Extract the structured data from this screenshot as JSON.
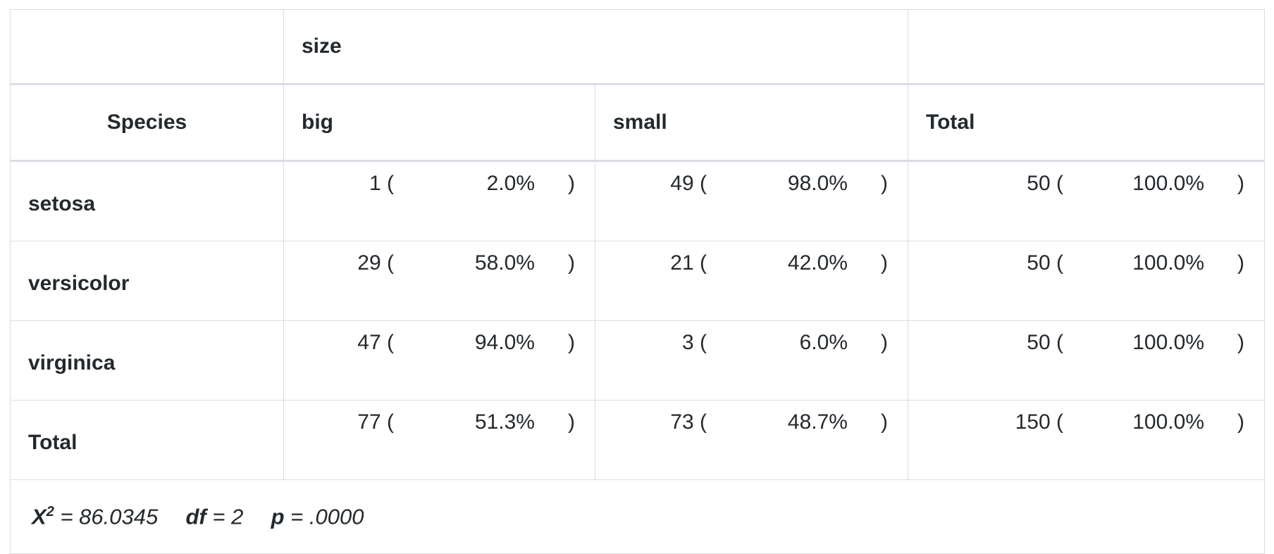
{
  "header": {
    "group_label": "size",
    "species_label": "Species",
    "columns": [
      "big",
      "small",
      "Total"
    ]
  },
  "rows": [
    {
      "label": "setosa",
      "cells": [
        {
          "count": "1",
          "pct": "2.0%"
        },
        {
          "count": "49",
          "pct": "98.0%"
        },
        {
          "count": "50",
          "pct": "100.0%"
        }
      ]
    },
    {
      "label": "versicolor",
      "cells": [
        {
          "count": "29",
          "pct": "58.0%"
        },
        {
          "count": "21",
          "pct": "42.0%"
        },
        {
          "count": "50",
          "pct": "100.0%"
        }
      ]
    },
    {
      "label": "virginica",
      "cells": [
        {
          "count": "47",
          "pct": "94.0%"
        },
        {
          "count": "3",
          "pct": "6.0%"
        },
        {
          "count": "50",
          "pct": "100.0%"
        }
      ]
    },
    {
      "label": "Total",
      "cells": [
        {
          "count": "77",
          "pct": "51.3%"
        },
        {
          "count": "73",
          "pct": "48.7%"
        },
        {
          "count": "150",
          "pct": "100.0%"
        }
      ]
    }
  ],
  "close_paren": ")",
  "stats": {
    "chi_symbol": "X",
    "chi_power": "2",
    "chi_value": "= 86.0345",
    "df_label": "df",
    "df_value": "= 2",
    "p_label": "p",
    "p_value": "= .0000"
  }
}
